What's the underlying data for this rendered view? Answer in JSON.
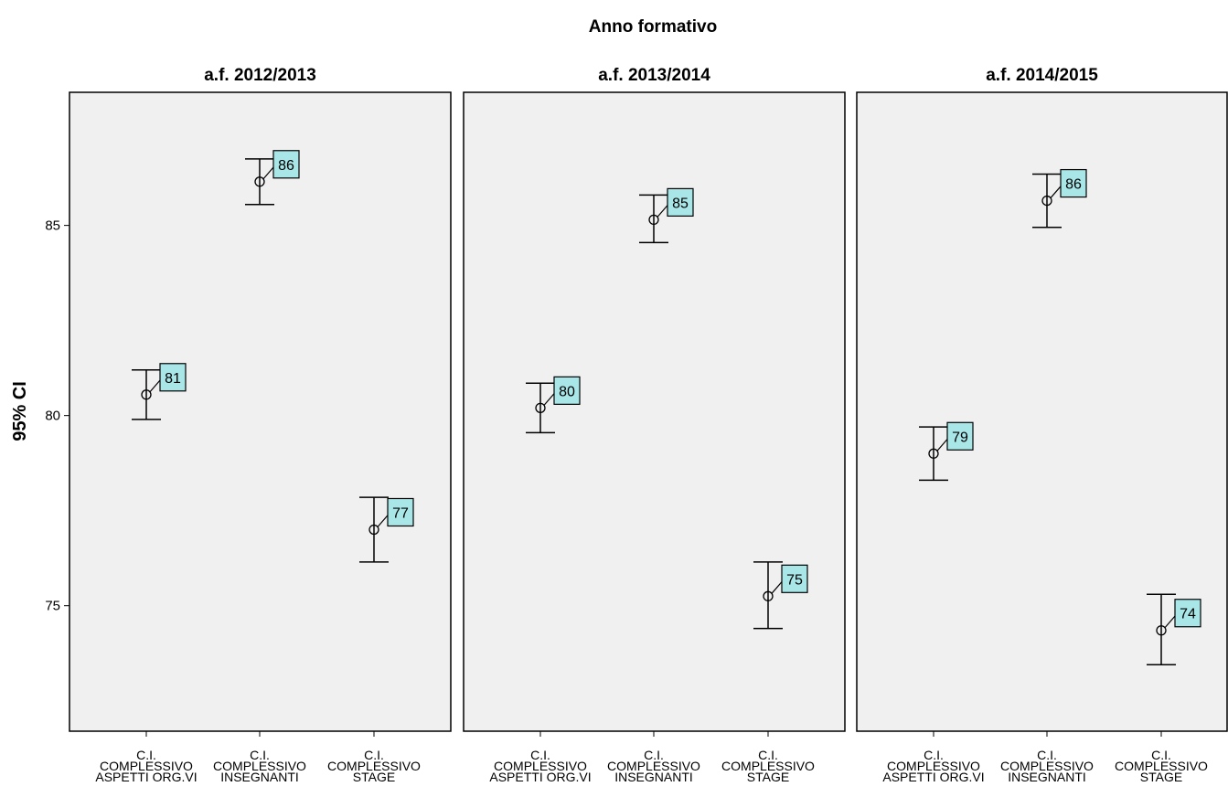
{
  "chart_data": {
    "type": "errorbar",
    "title": "Anno formativo",
    "ylabel": "95% CI",
    "ylim": [
      71.7,
      88.5
    ],
    "yticks": [
      75,
      80,
      85
    ],
    "category_lines": [
      [
        "C.I.",
        "COMPLESSIVO",
        "ASPETTI ORG.VI"
      ],
      [
        "C.I.",
        "COMPLESSIVO",
        "INSEGNANTI"
      ],
      [
        "C.I.",
        "COMPLESSIVO",
        "STAGE"
      ]
    ],
    "panels": [
      {
        "facet": "a.f. 2012/2013",
        "points": [
          {
            "mean": 80.55,
            "low": 79.9,
            "high": 81.2,
            "label": "81"
          },
          {
            "mean": 86.15,
            "low": 85.55,
            "high": 86.75,
            "label": "86"
          },
          {
            "mean": 77.0,
            "low": 76.15,
            "high": 77.85,
            "label": "77"
          }
        ]
      },
      {
        "facet": "a.f. 2013/2014",
        "points": [
          {
            "mean": 80.2,
            "low": 79.55,
            "high": 80.85,
            "label": "80"
          },
          {
            "mean": 85.15,
            "low": 84.55,
            "high": 85.8,
            "label": "85"
          },
          {
            "mean": 75.25,
            "low": 74.4,
            "high": 76.15,
            "label": "75"
          }
        ]
      },
      {
        "facet": "a.f. 2014/2015",
        "points": [
          {
            "mean": 79.0,
            "low": 78.3,
            "high": 79.7,
            "label": "79"
          },
          {
            "mean": 85.65,
            "low": 84.95,
            "high": 86.35,
            "label": "86"
          },
          {
            "mean": 74.35,
            "low": 73.45,
            "high": 75.3,
            "label": "74"
          }
        ]
      }
    ],
    "colors": {
      "panel_bg": "#f0f0f0",
      "label_bg": "#a8e6e8",
      "stroke": "#000000"
    }
  }
}
